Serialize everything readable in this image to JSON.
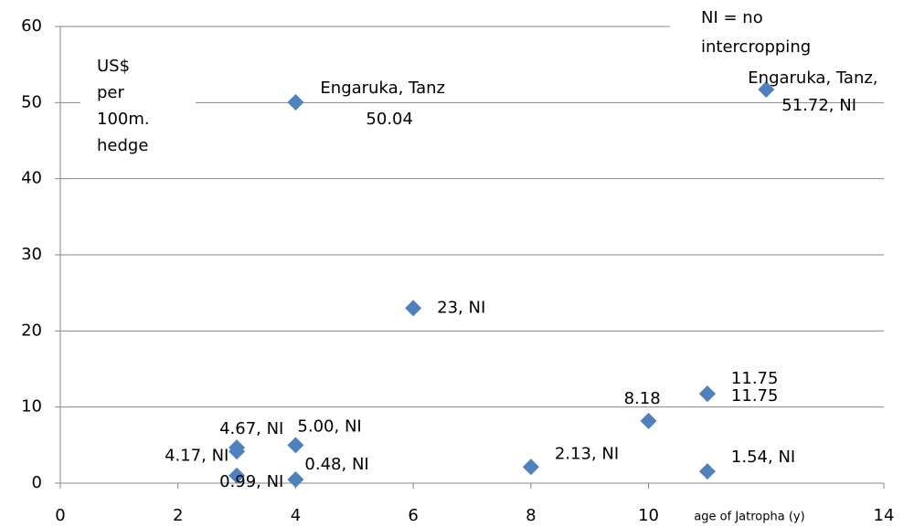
{
  "chart_data": {
    "type": "scatter",
    "y_label": [
      "US$",
      "per",
      "100m.",
      "hedge"
    ],
    "x_label": "age of Jatropha (y)",
    "annotation": [
      "NI = no",
      "intercropping"
    ],
    "x": [
      4,
      12,
      6,
      11,
      11,
      10,
      3,
      3,
      3,
      4,
      4,
      8,
      11
    ],
    "values": [
      50.04,
      51.72,
      23,
      11.75,
      11.75,
      8.18,
      4.67,
      4.17,
      0.99,
      5.0,
      0.48,
      2.13,
      1.54
    ],
    "value_labels": [
      [
        "Engaruka, Tanz",
        "50.04"
      ],
      [
        "Engaruka, Tanz,",
        "51.72, NI"
      ],
      [
        "23, NI"
      ],
      [
        "11.75"
      ],
      [
        "11.75"
      ],
      [
        "8.18"
      ],
      [
        "4.67, NI"
      ],
      [
        "4.17, NI"
      ],
      [
        "0.99, NI"
      ],
      [
        "5.00, NI"
      ],
      [
        "0.48, NI"
      ],
      [
        "2.13, NI"
      ],
      [
        "1.54, NI"
      ]
    ],
    "color": "#4f81bd",
    "xlim": [
      0,
      14
    ],
    "xticks": [
      0,
      2,
      4,
      6,
      8,
      10,
      14
    ],
    "ylim": [
      0,
      60
    ],
    "yticks": [
      0,
      10,
      20,
      30,
      40,
      50,
      60
    ],
    "grid": true
  }
}
